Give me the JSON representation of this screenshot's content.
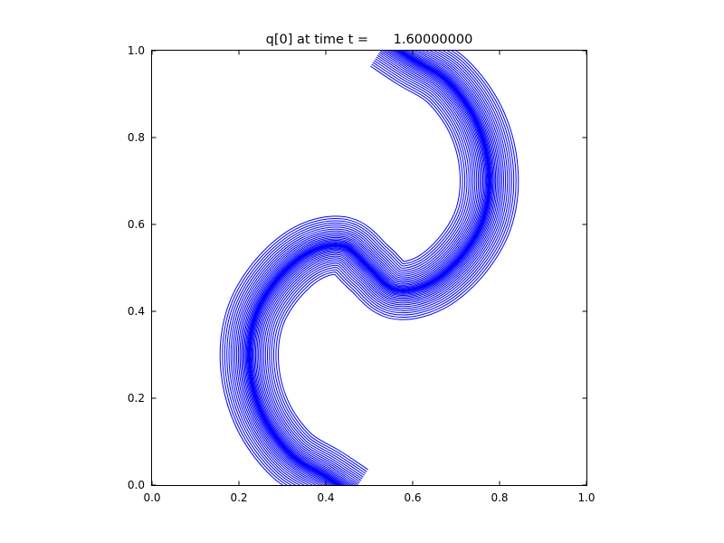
{
  "chart_data": {
    "type": "contour",
    "title": "q[0] at time t =      1.60000000",
    "xlabel": "",
    "ylabel": "",
    "xlim": [
      0.0,
      1.0
    ],
    "ylim": [
      0.0,
      1.0
    ],
    "x_ticks": [
      "0.0",
      "0.2",
      "0.4",
      "0.6",
      "0.8",
      "1.0"
    ],
    "y_ticks": [
      "0.0",
      "0.2",
      "0.4",
      "0.6",
      "0.8",
      "1.0"
    ],
    "grid": false,
    "legend": false,
    "contour_color": "#0000ff",
    "background_color": "#ffffff",
    "n_contour_levels": 20,
    "description": "Nested blue contour lines forming an S-shaped swirl band, 180-degree rotationally symmetric about (0.5, 0.5), touching the bottom boundary near x=0.45 and the top boundary near x=0.55-0.83",
    "band_centerline": [
      [
        0.46,
        -0.02
      ],
      [
        0.4,
        0.02
      ],
      [
        0.32,
        0.07
      ],
      [
        0.255,
        0.16
      ],
      [
        0.225,
        0.27
      ],
      [
        0.235,
        0.38
      ],
      [
        0.285,
        0.47
      ],
      [
        0.36,
        0.535
      ],
      [
        0.44,
        0.55
      ],
      [
        0.5,
        0.5
      ],
      [
        0.56,
        0.45
      ],
      [
        0.64,
        0.465
      ],
      [
        0.715,
        0.53
      ],
      [
        0.765,
        0.62
      ],
      [
        0.775,
        0.73
      ],
      [
        0.745,
        0.84
      ],
      [
        0.68,
        0.93
      ],
      [
        0.6,
        0.98
      ],
      [
        0.54,
        1.02
      ]
    ],
    "band_half_width": 0.068
  }
}
